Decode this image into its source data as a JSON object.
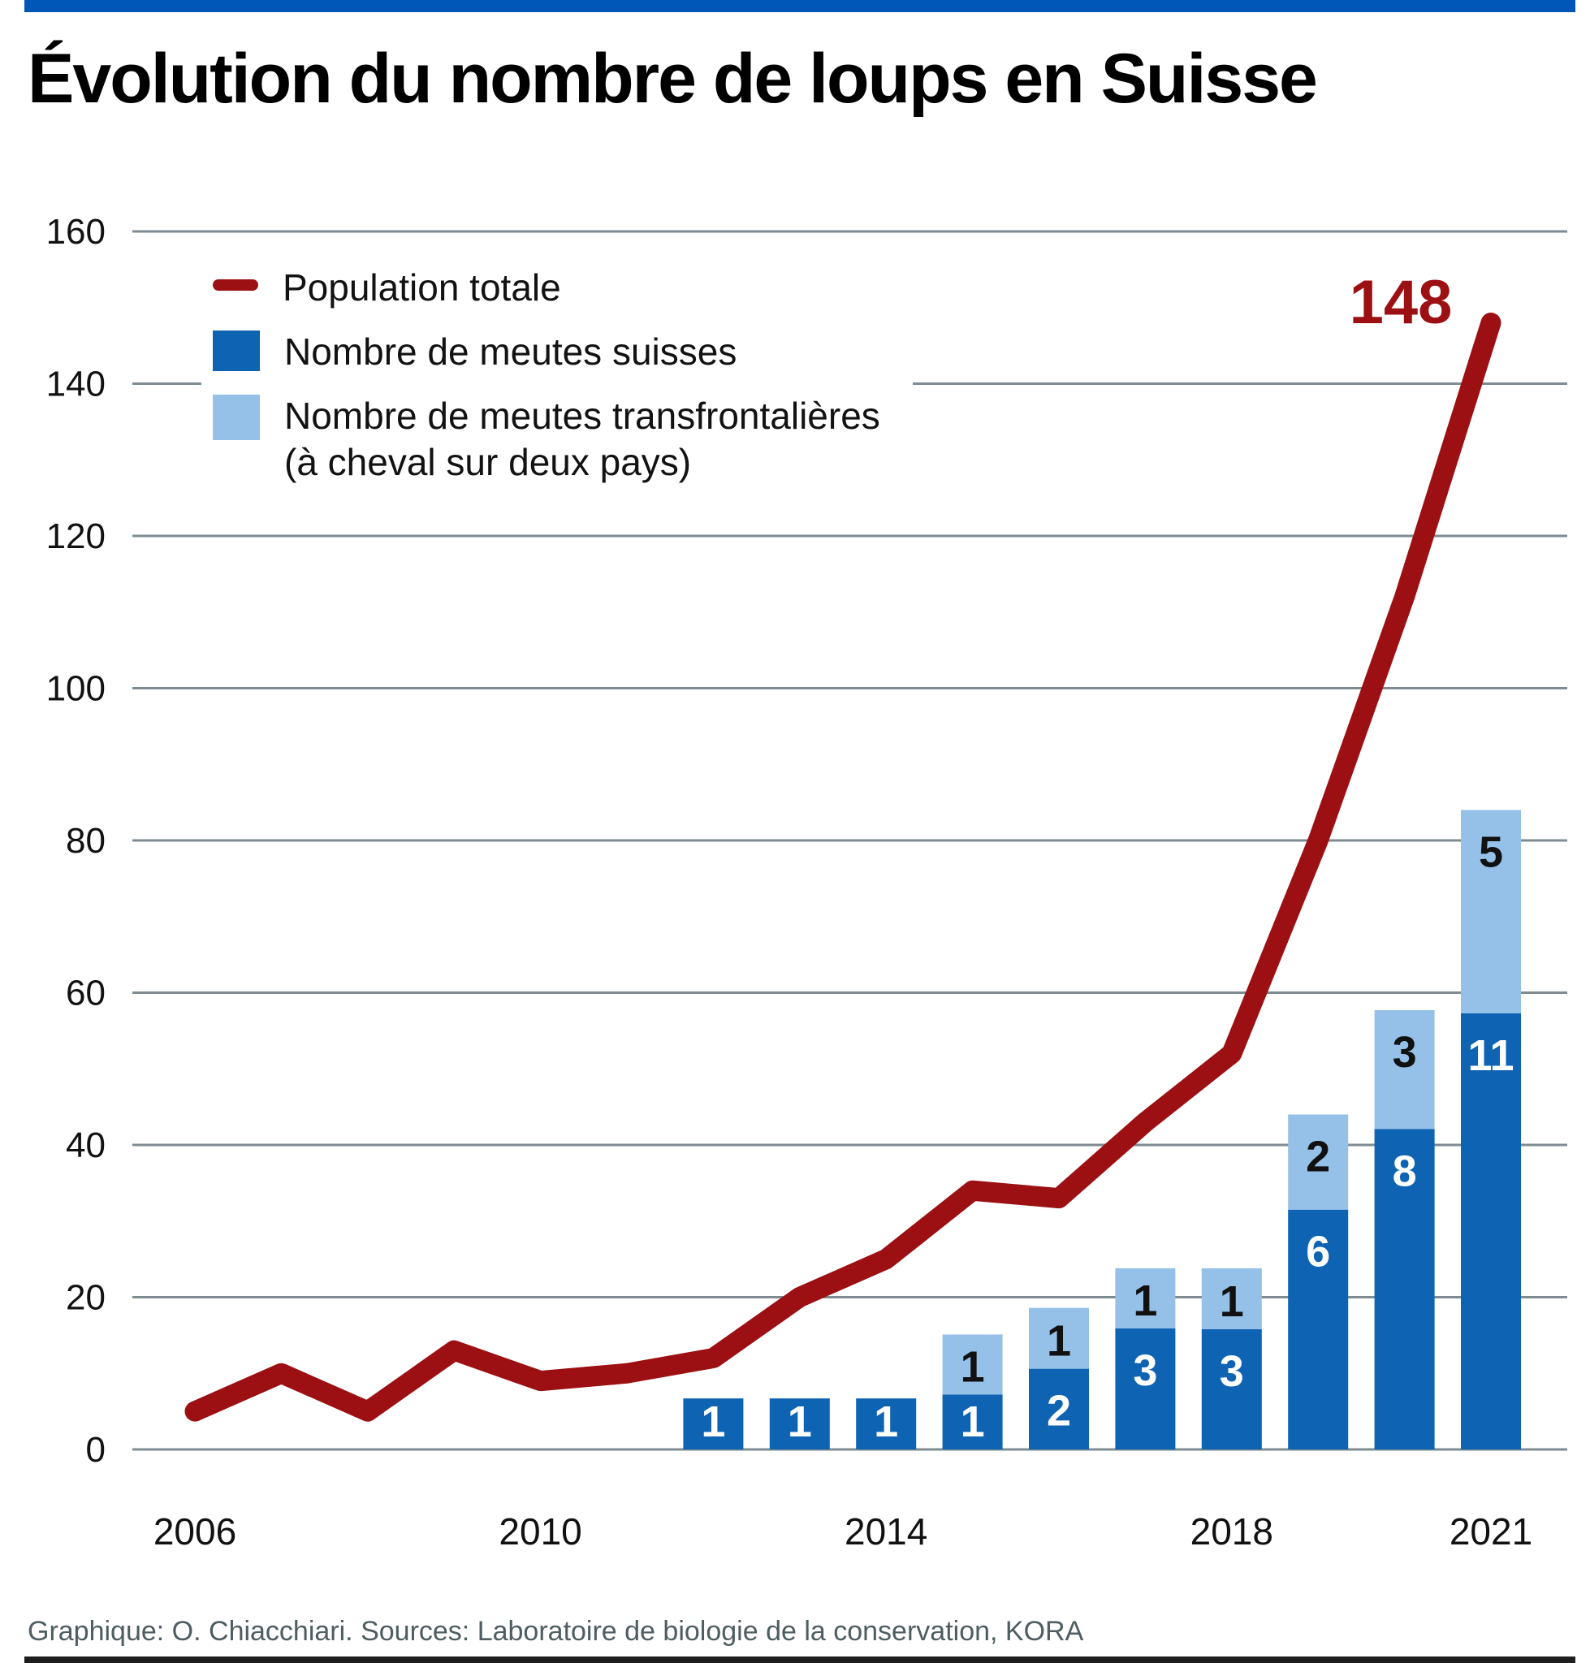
{
  "page": {
    "title": "Évolution du nombre de loups en Suisse",
    "footer": "Graphique: O. Chiacchiari. Sources: Laboratoire de biologie de la conservation, KORA"
  },
  "legend": {
    "population_label": "Population totale",
    "swiss_label": "Nombre de meutes suisses",
    "cross_label_line1": "Nombre de meutes transfrontalières",
    "cross_label_line2": "(à cheval sur deux pays)"
  },
  "colors": {
    "topbar_blue": "#0057b7",
    "line_red": "#9c1013",
    "swiss_dark_blue": "#0e63b3",
    "cross_light_blue": "#95c0e8",
    "gridline_gray": "#7e8b91",
    "axis_text": "#111111",
    "bar_label_on_dark": "#ffffff",
    "bar_label_on_light": "#111111",
    "footer_gray": "#4e5d61"
  },
  "chart_data": {
    "type": "line+stacked-bar",
    "title": "Évolution du nombre de loups en Suisse",
    "x": [
      2006,
      2007,
      2008,
      2009,
      2010,
      2011,
      2012,
      2013,
      2014,
      2015,
      2016,
      2017,
      2018,
      2019,
      2020,
      2021
    ],
    "x_ticks": [
      2006,
      2010,
      2014,
      2018,
      2021
    ],
    "y_ticks": [
      0,
      20,
      40,
      60,
      80,
      100,
      120,
      140,
      160
    ],
    "ylim": [
      0,
      160
    ],
    "grid": true,
    "legend_position": "top-left-inside",
    "series": [
      {
        "name": "Population totale",
        "type": "line",
        "color": "#9c1013",
        "values": [
          5,
          10,
          5,
          13,
          9,
          10,
          12,
          20,
          25,
          34,
          33,
          43,
          52,
          80,
          112,
          148
        ]
      },
      {
        "name": "Nombre de meutes suisses",
        "type": "bar",
        "color": "#0e63b3",
        "values": [
          0,
          0,
          0,
          0,
          0,
          0,
          1,
          1,
          1,
          1,
          2,
          3,
          3,
          6,
          8,
          11
        ]
      },
      {
        "name": "Nombre de meutes transfrontalières (à cheval sur deux pays)",
        "type": "bar",
        "color": "#95c0e8",
        "values": [
          0,
          0,
          0,
          0,
          0,
          0,
          0,
          0,
          0,
          1,
          1,
          1,
          1,
          2,
          3,
          5
        ]
      }
    ],
    "bars": [
      {
        "year": 2012,
        "swiss_packs": 1,
        "cross_packs": 0,
        "swiss_height_units": 6.7,
        "cross_height_units": 0
      },
      {
        "year": 2013,
        "swiss_packs": 1,
        "cross_packs": 0,
        "swiss_height_units": 6.7,
        "cross_height_units": 0
      },
      {
        "year": 2014,
        "swiss_packs": 1,
        "cross_packs": 0,
        "swiss_height_units": 6.7,
        "cross_height_units": 0
      },
      {
        "year": 2015,
        "swiss_packs": 1,
        "cross_packs": 1,
        "swiss_height_units": 7.2,
        "cross_height_units": 7.9
      },
      {
        "year": 2016,
        "swiss_packs": 2,
        "cross_packs": 1,
        "swiss_height_units": 10.6,
        "cross_height_units": 8.0
      },
      {
        "year": 2017,
        "swiss_packs": 3,
        "cross_packs": 1,
        "swiss_height_units": 15.9,
        "cross_height_units": 7.9
      },
      {
        "year": 2018,
        "swiss_packs": 3,
        "cross_packs": 1,
        "swiss_height_units": 15.8,
        "cross_height_units": 8.0
      },
      {
        "year": 2019,
        "swiss_packs": 6,
        "cross_packs": 2,
        "swiss_height_units": 31.5,
        "cross_height_units": 12.5
      },
      {
        "year": 2020,
        "swiss_packs": 8,
        "cross_packs": 3,
        "swiss_height_units": 42.1,
        "cross_height_units": 15.6
      },
      {
        "year": 2021,
        "swiss_packs": 11,
        "cross_packs": 5,
        "swiss_height_units": 57.3,
        "cross_height_units": 26.7
      }
    ],
    "annotation": {
      "text": "148",
      "year": 2021,
      "value": 148
    }
  }
}
